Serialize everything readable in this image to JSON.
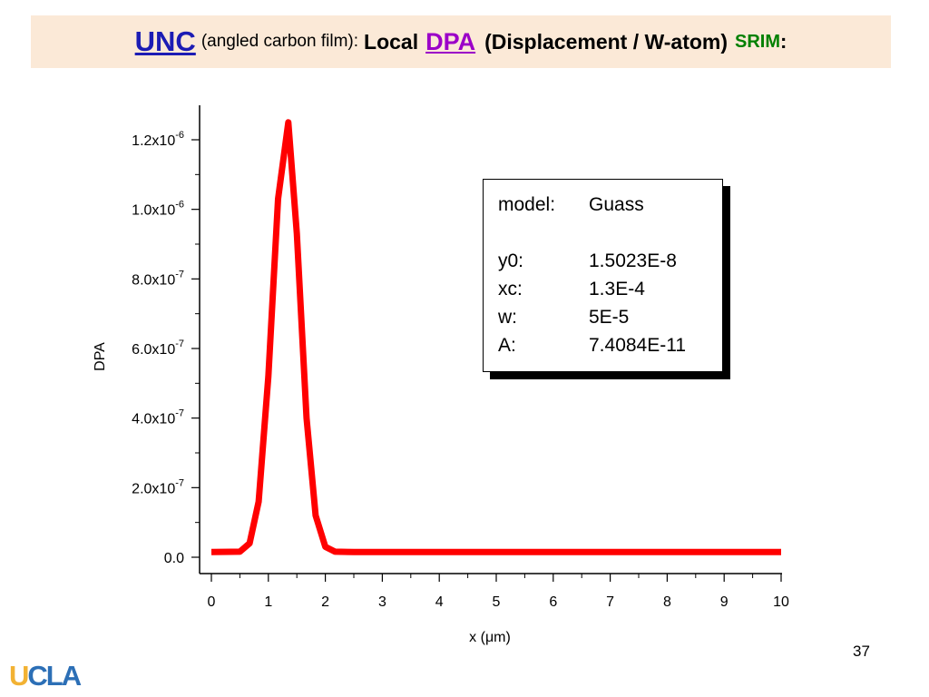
{
  "slide": {
    "title": {
      "unc": "UNC",
      "subtitle": "(angled carbon film):",
      "local": "Local",
      "dpa": "DPA",
      "displacement": "(Displacement / W-atom)",
      "srim": "SRIM",
      "colon": ":"
    },
    "page_number": "37",
    "logo": {
      "u": "U",
      "c": "C",
      "l": "L",
      "a": "A"
    },
    "colors": {
      "title_bg": "#fbe9d7",
      "unc": "#1c1cb4",
      "dpa": "#9b00c8",
      "srim": "#008000",
      "curve": "#ff0000"
    }
  },
  "legend": {
    "rows": [
      {
        "key": "model:",
        "value": "Guass"
      },
      {
        "key": "y0:",
        "value": "1.5023E-8"
      },
      {
        "key": "xc:",
        "value": "1.3E-4"
      },
      {
        "key": "w:",
        "value": "5E-5"
      },
      {
        "key": "A:",
        "value": "7.4084E-11"
      }
    ]
  },
  "chart_data": {
    "type": "line",
    "xlabel": "x (μm)",
    "ylabel": "DPA",
    "xlim": [
      0,
      10
    ],
    "ylim": [
      0,
      1.2e-06
    ],
    "x_ticks": [
      0,
      1,
      2,
      3,
      4,
      5,
      6,
      7,
      8,
      9,
      10
    ],
    "x_tick_labels": [
      "0",
      "1",
      "2",
      "3",
      "4",
      "5",
      "6",
      "7",
      "8",
      "9",
      "10"
    ],
    "y_ticks": [
      0,
      2e-07,
      4e-07,
      6e-07,
      8e-07,
      1e-06,
      1.2e-06
    ],
    "y_tick_labels": [
      {
        "mant": "0.0",
        "exp": ""
      },
      {
        "mant": "2.0x10",
        "exp": "-7"
      },
      {
        "mant": "4.0x10",
        "exp": "-7"
      },
      {
        "mant": "6.0x10",
        "exp": "-7"
      },
      {
        "mant": "8.0x10",
        "exp": "-7"
      },
      {
        "mant": "1.0x10",
        "exp": "-6"
      },
      {
        "mant": "1.2x10",
        "exp": "-6"
      }
    ],
    "grid": false,
    "legend_position": "top-right",
    "series": [
      {
        "color": "#ff0000",
        "x": [
          0,
          0.5,
          0.67,
          0.83,
          1.0,
          1.17,
          1.35,
          1.5,
          1.67,
          1.83,
          2.0,
          2.17,
          2.5,
          3,
          4,
          5,
          6,
          7,
          8,
          9,
          10
        ],
        "y": [
          1.5e-08,
          1.6e-08,
          4e-08,
          1.6e-07,
          5.2e-07,
          1.03e-06,
          1.25e-06,
          9.3e-07,
          4e-07,
          1.2e-07,
          3e-08,
          1.6e-08,
          1.5e-08,
          1.5e-08,
          1.5e-08,
          1.5e-08,
          1.5e-08,
          1.5e-08,
          1.5e-08,
          1.5e-08,
          1.5e-08
        ]
      }
    ]
  }
}
